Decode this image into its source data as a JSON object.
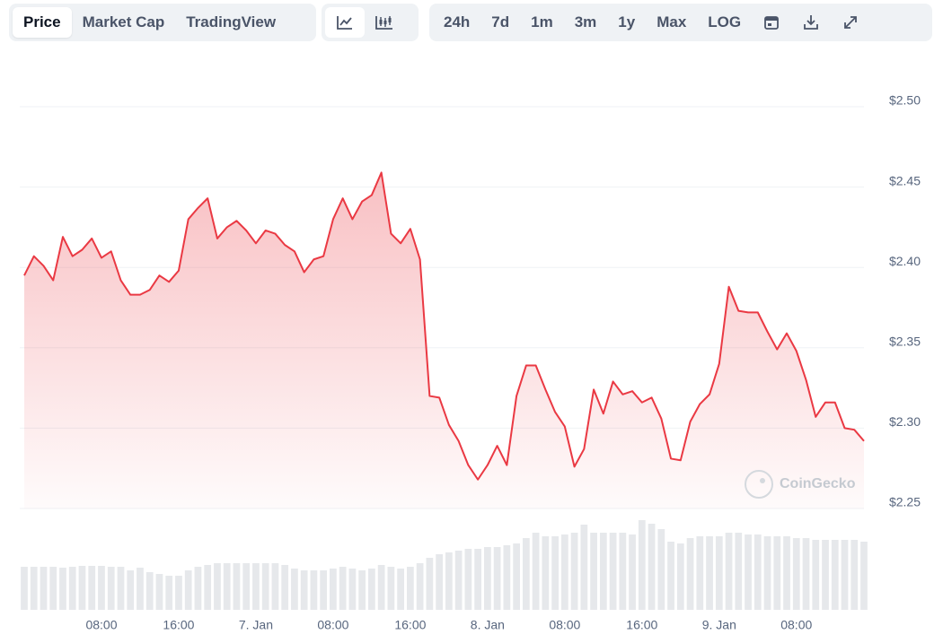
{
  "toolbar": {
    "tabs": [
      "Price",
      "Market Cap",
      "TradingView"
    ],
    "ranges": [
      "24h",
      "7d",
      "1m",
      "3m",
      "1y",
      "Max",
      "LOG"
    ]
  },
  "chart_data": {
    "type": "area",
    "color": "#ea3943",
    "watermark": "CoinGecko",
    "x": [
      0,
      1,
      2,
      3,
      4,
      5,
      6,
      7,
      8,
      9,
      10,
      11,
      12,
      13,
      14,
      15,
      16,
      17,
      18,
      19,
      20,
      21,
      22,
      23,
      24,
      25,
      26,
      27,
      28,
      29,
      30,
      31,
      32,
      33,
      34,
      35,
      36,
      37,
      38,
      39,
      40,
      41,
      42,
      43,
      44,
      45,
      46,
      47,
      48,
      49,
      50,
      51,
      52,
      53,
      54,
      55,
      56,
      57,
      58,
      59,
      60,
      61,
      62,
      63,
      64,
      65,
      66,
      67,
      68,
      69,
      70,
      71,
      72,
      73,
      74,
      75,
      76,
      77,
      78,
      79,
      80,
      81,
      82,
      83,
      84,
      85,
      86,
      87
    ],
    "values": [
      2.395,
      2.407,
      2.401,
      2.392,
      2.419,
      2.407,
      2.411,
      2.418,
      2.406,
      2.41,
      2.392,
      2.383,
      2.383,
      2.386,
      2.395,
      2.391,
      2.398,
      2.43,
      2.437,
      2.443,
      2.418,
      2.425,
      2.429,
      2.423,
      2.415,
      2.423,
      2.421,
      2.414,
      2.41,
      2.397,
      2.405,
      2.407,
      2.43,
      2.443,
      2.43,
      2.441,
      2.445,
      2.459,
      2.421,
      2.415,
      2.424,
      2.405,
      2.32,
      2.319,
      2.302,
      2.292,
      2.277,
      2.268,
      2.277,
      2.289,
      2.277,
      2.32,
      2.339,
      2.339,
      2.324,
      2.31,
      2.301,
      2.276,
      2.287,
      2.324,
      2.309,
      2.329,
      2.321,
      2.323,
      2.316,
      2.319,
      2.306,
      2.281,
      2.28,
      2.304,
      2.315,
      2.321,
      2.34,
      2.388,
      2.373,
      2.372,
      2.372,
      2.36,
      2.349,
      2.359,
      2.348,
      2.33,
      2.307,
      2.316,
      2.316,
      2.3,
      2.299,
      2.292
    ],
    "xlim": [
      0,
      87
    ],
    "xticks": [
      {
        "value": 8,
        "label": "08:00"
      },
      {
        "value": 16,
        "label": "16:00"
      },
      {
        "value": 24,
        "label": "7. Jan"
      },
      {
        "value": 32,
        "label": "08:00"
      },
      {
        "value": 40,
        "label": "16:00"
      },
      {
        "value": 48,
        "label": "8. Jan"
      },
      {
        "value": 56,
        "label": "08:00"
      },
      {
        "value": 64,
        "label": "16:00"
      },
      {
        "value": 72,
        "label": "9. Jan"
      },
      {
        "value": 80,
        "label": "08:00"
      }
    ],
    "ylim": [
      2.25,
      2.5
    ],
    "yticks": [
      {
        "value": 2.25,
        "label": "$2.25"
      },
      {
        "value": 2.3,
        "label": "$2.30"
      },
      {
        "value": 2.35,
        "label": "$2.35"
      },
      {
        "value": 2.4,
        "label": "$2.40"
      },
      {
        "value": 2.45,
        "label": "$2.45"
      },
      {
        "value": 2.5,
        "label": "$2.50"
      }
    ],
    "grid": true,
    "volume": {
      "color": "#e6e8eb",
      "ylim": [
        0,
        110
      ],
      "values": [
        48,
        48,
        48,
        48,
        47,
        48,
        49,
        49,
        49,
        48,
        48,
        44,
        47,
        42,
        40,
        38,
        38,
        44,
        48,
        50,
        52,
        52,
        52,
        52,
        52,
        52,
        52,
        50,
        46,
        44,
        44,
        44,
        46,
        48,
        46,
        44,
        46,
        50,
        48,
        46,
        48,
        52,
        58,
        62,
        64,
        66,
        68,
        68,
        70,
        70,
        72,
        74,
        80,
        86,
        82,
        82,
        84,
        86,
        95,
        86,
        86,
        86,
        86,
        84,
        100,
        96,
        90,
        76,
        74,
        80,
        82,
        82,
        82,
        86,
        86,
        84,
        84,
        82,
        82,
        82,
        80,
        80,
        78,
        78,
        78,
        78,
        78,
        76
      ]
    }
  }
}
